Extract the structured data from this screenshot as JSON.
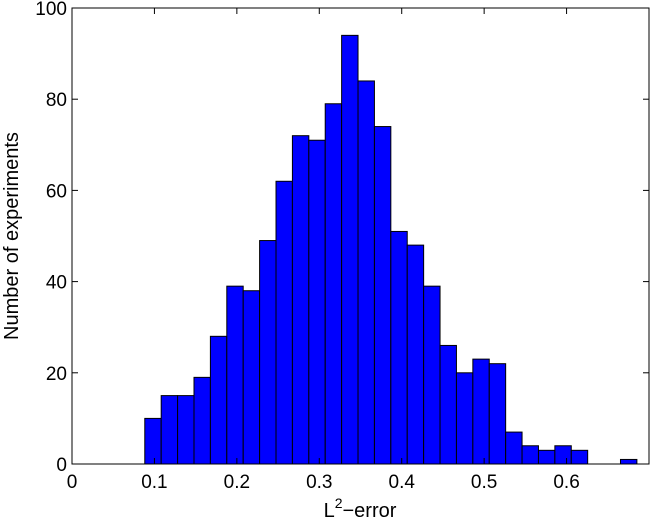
{
  "chart_data": {
    "type": "bar",
    "title": "",
    "xlabel_base": "L",
    "xlabel_sup": "2",
    "xlabel_rest": "−error",
    "ylabel": "Number of experiments",
    "xlim": [
      0,
      0.7
    ],
    "ylim": [
      0,
      100
    ],
    "xticks": [
      "0",
      "0.1",
      "0.2",
      "0.3",
      "0.4",
      "0.5",
      "0.6"
    ],
    "yticks": [
      "0",
      "20",
      "40",
      "60",
      "80",
      "100"
    ],
    "grid": false,
    "bin_width": 0.0199,
    "bins": [
      {
        "x0": 0.0883,
        "value": 10
      },
      {
        "x0": 0.1082,
        "value": 15
      },
      {
        "x0": 0.1281,
        "value": 15
      },
      {
        "x0": 0.148,
        "value": 19
      },
      {
        "x0": 0.1679,
        "value": 28
      },
      {
        "x0": 0.1878,
        "value": 39
      },
      {
        "x0": 0.2077,
        "value": 38
      },
      {
        "x0": 0.2276,
        "value": 49
      },
      {
        "x0": 0.2475,
        "value": 62
      },
      {
        "x0": 0.2674,
        "value": 72
      },
      {
        "x0": 0.2873,
        "value": 71
      },
      {
        "x0": 0.3072,
        "value": 79
      },
      {
        "x0": 0.3271,
        "value": 94
      },
      {
        "x0": 0.347,
        "value": 84
      },
      {
        "x0": 0.3669,
        "value": 74
      },
      {
        "x0": 0.3868,
        "value": 51
      },
      {
        "x0": 0.4067,
        "value": 48
      },
      {
        "x0": 0.4266,
        "value": 39
      },
      {
        "x0": 0.4465,
        "value": 26
      },
      {
        "x0": 0.4664,
        "value": 20
      },
      {
        "x0": 0.4863,
        "value": 23
      },
      {
        "x0": 0.5062,
        "value": 22
      },
      {
        "x0": 0.5261,
        "value": 7
      },
      {
        "x0": 0.546,
        "value": 4
      },
      {
        "x0": 0.5659,
        "value": 3
      },
      {
        "x0": 0.5858,
        "value": 4
      },
      {
        "x0": 0.6057,
        "value": 3
      },
      {
        "x0": 0.6256,
        "value": 0
      },
      {
        "x0": 0.6455,
        "value": 0
      },
      {
        "x0": 0.6654,
        "value": 1
      }
    ],
    "colors": {
      "bar_fill": "#0000ff",
      "bar_edge": "#000000",
      "axis": "#000000"
    }
  }
}
